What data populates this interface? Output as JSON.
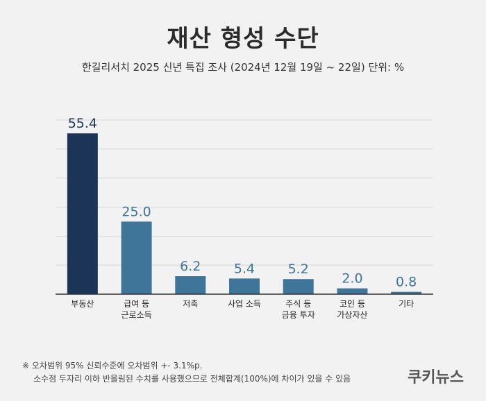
{
  "header": {
    "title": "재산 형성 수단",
    "subtitle": "한길리서치 2025 신년 특집 조사 (2024년 12월 19일 ~ 22일) 단위: %"
  },
  "chart_data": {
    "type": "bar",
    "categories": [
      "부동산",
      "급여 등\n근로소득",
      "저축",
      "사업 소득",
      "주식 등\n금융 투자",
      "코인 등\n가상자산",
      "기타"
    ],
    "values": [
      55.4,
      25.0,
      6.2,
      5.4,
      5.2,
      2.0,
      0.8
    ],
    "value_labels": [
      "55.4",
      "25.0",
      "6.2",
      "5.4",
      "5.2",
      "2.0",
      "0.8"
    ],
    "ylim": [
      0,
      60
    ],
    "grid": true,
    "colors": {
      "highlight": "#1c3557",
      "bar": "#3f7599",
      "highlight_label": "#1c3557",
      "label": "#3f7599"
    }
  },
  "footnote": {
    "line1": "※ 오차범위 95% 신뢰수준에 오차범위 +- 3.1%p.",
    "line2": "소수점 두자리 이하 반올림된 수치를 사용했으므로 전체합계(100%)에 차이가 있을 수 있음"
  },
  "logo": {
    "text": "쿠키뉴스"
  }
}
